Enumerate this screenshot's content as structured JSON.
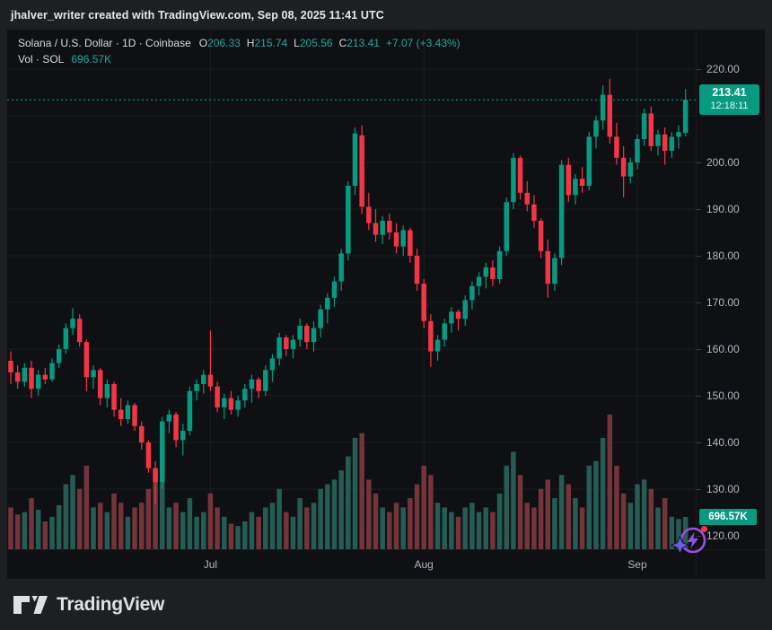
{
  "attribution": {
    "text": "jhalver_writer created with TradingView.com, Sep 08, 2025 11:41 UTC"
  },
  "legend": {
    "title": "Solana / U.S. Dollar · 1D · Coinbase",
    "ohlc": [
      {
        "label": "O",
        "value": "206.33"
      },
      {
        "label": "H",
        "value": "215.74"
      },
      {
        "label": "L",
        "value": "205.56"
      },
      {
        "label": "C",
        "value": "213.41"
      }
    ],
    "change": "+7.07 (+3.43%)",
    "volume_label": "Vol · SOL",
    "volume_value": "696.57K"
  },
  "price_scale": {
    "ticks": [
      "220.00",
      "200.00",
      "190.00",
      "180.00",
      "170.00",
      "160.00",
      "150.00",
      "140.00",
      "130.00",
      "120.00"
    ],
    "last_price_badge": {
      "price": "213.41",
      "countdown": "12:18:11"
    },
    "volume_badge": "696.57K"
  },
  "time_scale": {
    "labels": [
      "Jul",
      "Aug",
      "Sep"
    ]
  },
  "footer": {
    "brand": "TradingView"
  },
  "colors": {
    "outer_bg": "#1e1f23",
    "panel_bg": "#0e1014",
    "green": "#089981",
    "red": "#f23645",
    "vol_up": "#265c54",
    "vol_down": "#73343c",
    "legend_value": "#26a69a",
    "grid": "rgba(255,255,255,0.055)",
    "axis_text": "#b2b5be",
    "spark_purple": "#9a4fe0",
    "spark_star": "#6f5be8",
    "spark_dot": "#f23645"
  },
  "chart_data": {
    "type": "candlestick+volume",
    "title": "Solana / U.S. Dollar",
    "interval": "1D",
    "exchange": "Coinbase",
    "price_axis_range_visible": [
      117,
      228
    ],
    "price_gridlines": [
      120,
      130,
      140,
      150,
      160,
      170,
      180,
      190,
      200,
      210,
      220
    ],
    "time_ticks": [
      {
        "label": "Jul",
        "index": 29
      },
      {
        "label": "Aug",
        "index": 60
      },
      {
        "label": "Sep",
        "index": 91
      }
    ],
    "last": {
      "open": 206.33,
      "high": 215.74,
      "low": 205.56,
      "close": 213.41,
      "change": "+7.07",
      "change_pct": "+3.43%",
      "volume_k": 696.57
    },
    "volume_scale_max_k": 2900,
    "candles": [
      [
        157.5,
        159.5,
        152.5,
        155.0
      ],
      [
        155.0,
        156.5,
        151.5,
        153.0
      ],
      [
        153.0,
        157.0,
        152.0,
        156.0
      ],
      [
        156.0,
        157.5,
        149.5,
        151.5
      ],
      [
        151.5,
        155.5,
        150.0,
        154.5
      ],
      [
        154.5,
        156.0,
        152.5,
        153.5
      ],
      [
        153.5,
        158.0,
        153.0,
        157.0
      ],
      [
        157.0,
        161.0,
        156.0,
        160.0
      ],
      [
        160.0,
        165.5,
        159.0,
        164.5
      ],
      [
        164.5,
        168.8,
        163.0,
        166.5
      ],
      [
        166.5,
        167.5,
        160.5,
        161.5
      ],
      [
        161.5,
        162.0,
        151.0,
        154.0
      ],
      [
        154.0,
        156.5,
        151.5,
        155.5
      ],
      [
        155.5,
        156.0,
        148.0,
        149.5
      ],
      [
        149.5,
        153.5,
        147.5,
        152.5
      ],
      [
        152.5,
        153.0,
        145.5,
        147.0
      ],
      [
        147.0,
        149.5,
        143.5,
        145.0
      ],
      [
        145.0,
        149.0,
        144.0,
        148.0
      ],
      [
        148.0,
        148.5,
        142.5,
        143.5
      ],
      [
        143.5,
        144.5,
        138.5,
        140.0
      ],
      [
        140.0,
        140.5,
        133.5,
        134.5
      ],
      [
        134.5,
        136.0,
        126.8,
        131.5
      ],
      [
        131.5,
        145.5,
        130.0,
        144.5
      ],
      [
        144.5,
        147.0,
        142.0,
        146.0
      ],
      [
        146.0,
        146.5,
        139.0,
        140.5
      ],
      [
        140.5,
        144.0,
        137.2,
        142.5
      ],
      [
        142.5,
        152.0,
        141.5,
        151.0
      ],
      [
        151.0,
        153.5,
        149.0,
        152.5
      ],
      [
        152.5,
        155.5,
        150.5,
        154.5
      ],
      [
        154.5,
        164.0,
        151.0,
        152.0
      ],
      [
        152.0,
        153.0,
        146.5,
        147.5
      ],
      [
        147.5,
        150.5,
        145.0,
        149.5
      ],
      [
        149.5,
        151.0,
        146.0,
        147.0
      ],
      [
        147.0,
        150.0,
        145.5,
        149.0
      ],
      [
        149.0,
        152.5,
        147.5,
        151.5
      ],
      [
        151.5,
        154.5,
        148.5,
        153.5
      ],
      [
        153.5,
        154.0,
        149.5,
        151.0
      ],
      [
        151.0,
        156.5,
        150.0,
        155.5
      ],
      [
        155.5,
        159.0,
        153.0,
        158.0
      ],
      [
        158.0,
        163.5,
        156.5,
        162.5
      ],
      [
        162.5,
        163.0,
        158.5,
        160.0
      ],
      [
        160.0,
        163.0,
        158.0,
        162.0
      ],
      [
        162.0,
        166.5,
        160.5,
        165.0
      ],
      [
        165.0,
        165.5,
        160.0,
        161.5
      ],
      [
        161.5,
        166.0,
        159.5,
        164.5
      ],
      [
        164.5,
        169.5,
        162.5,
        168.5
      ],
      [
        168.5,
        172.0,
        165.5,
        171.0
      ],
      [
        171.0,
        175.5,
        169.0,
        174.5
      ],
      [
        174.5,
        181.5,
        172.5,
        180.5
      ],
      [
        180.5,
        196.0,
        179.0,
        195.0
      ],
      [
        195.0,
        207.5,
        193.0,
        206.2
      ],
      [
        205.8,
        208.0,
        189.0,
        190.5
      ],
      [
        190.5,
        193.5,
        185.5,
        187.0
      ],
      [
        187.0,
        190.0,
        183.0,
        184.5
      ],
      [
        184.5,
        188.5,
        182.5,
        187.5
      ],
      [
        187.5,
        189.0,
        183.5,
        185.0
      ],
      [
        185.0,
        187.0,
        180.5,
        182.0
      ],
      [
        182.0,
        186.5,
        180.0,
        185.5
      ],
      [
        185.5,
        186.0,
        178.5,
        180.0
      ],
      [
        180.0,
        181.5,
        172.5,
        174.0
      ],
      [
        174.0,
        175.0,
        164.5,
        166.0
      ],
      [
        166.0,
        167.5,
        156.2,
        159.5
      ],
      [
        159.5,
        163.0,
        157.5,
        162.0
      ],
      [
        162.0,
        166.5,
        160.5,
        165.5
      ],
      [
        165.5,
        169.0,
        163.5,
        168.0
      ],
      [
        168.0,
        168.5,
        164.0,
        166.5
      ],
      [
        166.5,
        171.5,
        165.0,
        170.5
      ],
      [
        170.5,
        174.5,
        168.5,
        173.5
      ],
      [
        173.5,
        176.5,
        171.5,
        175.5
      ],
      [
        175.5,
        178.5,
        173.0,
        177.5
      ],
      [
        177.5,
        179.0,
        173.5,
        175.0
      ],
      [
        175.0,
        182.0,
        174.0,
        181.0
      ],
      [
        181.0,
        192.5,
        180.0,
        191.5
      ],
      [
        191.5,
        202.0,
        190.0,
        201.0
      ],
      [
        201.0,
        201.5,
        192.0,
        193.5
      ],
      [
        193.5,
        196.0,
        189.5,
        191.0
      ],
      [
        191.0,
        193.0,
        186.0,
        187.5
      ],
      [
        187.5,
        188.0,
        179.5,
        181.0
      ],
      [
        181.0,
        183.5,
        171.0,
        174.0
      ],
      [
        174.0,
        180.5,
        172.5,
        179.5
      ],
      [
        179.5,
        200.5,
        178.0,
        199.5
      ],
      [
        199.5,
        201.0,
        191.5,
        193.0
      ],
      [
        193.0,
        197.5,
        191.0,
        196.5
      ],
      [
        196.5,
        199.0,
        193.5,
        195.0
      ],
      [
        195.0,
        206.5,
        194.0,
        205.5
      ],
      [
        205.5,
        210.0,
        203.0,
        209.0
      ],
      [
        209.0,
        216.5,
        207.0,
        214.5
      ],
      [
        214.5,
        217.9,
        204.0,
        205.5
      ],
      [
        205.5,
        208.5,
        199.5,
        201.0
      ],
      [
        201.0,
        203.5,
        192.5,
        197.0
      ],
      [
        197.0,
        201.0,
        195.5,
        200.0
      ],
      [
        200.0,
        206.0,
        198.5,
        205.0
      ],
      [
        205.0,
        211.5,
        203.5,
        210.5
      ],
      [
        210.5,
        212.0,
        202.5,
        203.5
      ],
      [
        203.5,
        207.0,
        201.5,
        206.0
      ],
      [
        206.0,
        207.5,
        199.5,
        202.5
      ],
      [
        202.5,
        206.5,
        201.0,
        205.5
      ],
      [
        205.5,
        208.0,
        203.0,
        206.5
      ],
      [
        206.33,
        215.74,
        205.56,
        213.41
      ]
    ],
    "volumes_k": [
      900,
      750,
      800,
      1100,
      850,
      600,
      700,
      950,
      1400,
      1600,
      1300,
      1800,
      900,
      1000,
      800,
      1200,
      1000,
      700,
      900,
      1000,
      1300,
      1700,
      1600,
      900,
      1000,
      800,
      1100,
      700,
      800,
      1200,
      900,
      700,
      550,
      500,
      600,
      800,
      700,
      900,
      1000,
      1300,
      800,
      700,
      1100,
      900,
      1000,
      1300,
      1400,
      1500,
      1700,
      2000,
      2400,
      2500,
      1500,
      1200,
      900,
      800,
      1000,
      900,
      1100,
      1400,
      1800,
      1600,
      1000,
      900,
      800,
      700,
      900,
      1000,
      800,
      900,
      800,
      1200,
      1800,
      2100,
      1600,
      1000,
      900,
      1300,
      1500,
      1100,
      1600,
      1400,
      1100,
      900,
      1800,
      1900,
      2400,
      2900,
      1800,
      1200,
      1000,
      1400,
      1500,
      1300,
      900,
      1100,
      700,
      650,
      696.57
    ]
  }
}
